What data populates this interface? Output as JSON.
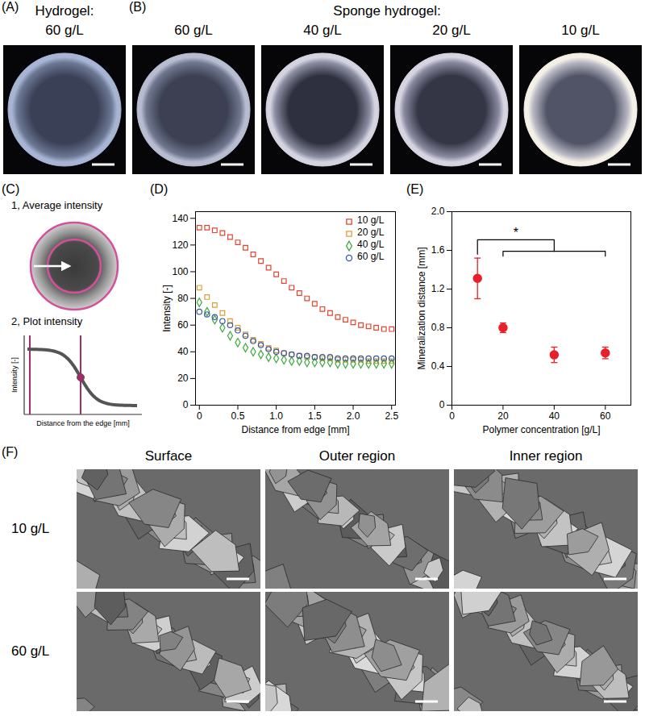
{
  "panels": {
    "A": {
      "label": "(A)",
      "title": "Hydrogel:",
      "images": [
        "60 g/L"
      ]
    },
    "B": {
      "label": "(B)",
      "title": "Sponge hydrogel:",
      "images": [
        "60 g/L",
        "40 g/L",
        "20 g/L",
        "10 g/L"
      ]
    },
    "C": {
      "label": "(C)",
      "steps": [
        "1, Average intensity",
        "2, Plot intensity"
      ],
      "x_label": "Distance from the edge [mm]",
      "y_label": "Intensity [-]"
    },
    "F": {
      "label": "(F)",
      "columns": [
        "Surface",
        "Outer region",
        "Inner region"
      ],
      "rows": [
        "10 g/L",
        "60 g/L"
      ]
    }
  },
  "chart_data": [
    {
      "panel": "(D)",
      "type": "scatter",
      "x_label": "Distance from edge [mm]",
      "y_label": "Intensity [-]",
      "x": [
        0,
        0.1,
        0.2,
        0.3,
        0.4,
        0.5,
        0.6,
        0.7,
        0.8,
        0.9,
        1,
        1.1,
        1.2,
        1.3,
        1.4,
        1.5,
        1.6,
        1.7,
        1.8,
        1.9,
        2,
        2.1,
        2.2,
        2.3,
        2.4,
        2.5
      ],
      "series": [
        {
          "name": "10 g/L",
          "color": "#e8432e",
          "marker": "square",
          "values": [
            133,
            133,
            131,
            129,
            126,
            122,
            118,
            113,
            108,
            103,
            98,
            93,
            88,
            84,
            80,
            76,
            72,
            69,
            66,
            64,
            62,
            60,
            59,
            58,
            57,
            57
          ]
        },
        {
          "name": "20 g/L",
          "color": "#d9a03a",
          "marker": "square",
          "values": [
            88,
            81,
            75,
            69,
            63,
            58,
            53,
            49,
            46,
            43,
            41,
            39,
            38,
            37,
            36,
            36,
            35,
            35,
            34,
            34,
            34,
            34,
            33,
            33,
            33,
            33
          ]
        },
        {
          "name": "40 g/L",
          "color": "#3daa3d",
          "marker": "diamond",
          "values": [
            77,
            70,
            64,
            58,
            52,
            47,
            43,
            40,
            38,
            36,
            35,
            34,
            33,
            33,
            32,
            32,
            32,
            32,
            31,
            31,
            31,
            31,
            31,
            31,
            31,
            31
          ]
        },
        {
          "name": "60 g/L",
          "color": "#3557a6",
          "marker": "circle",
          "values": [
            70,
            68,
            66,
            63,
            60,
            56,
            52,
            48,
            45,
            42,
            40,
            39,
            38,
            37,
            37,
            36,
            36,
            36,
            35,
            35,
            35,
            35,
            35,
            35,
            35,
            35
          ]
        }
      ],
      "xlim": [
        -0.05,
        2.55
      ],
      "xticks": [
        0,
        0.5,
        {
          "value": 1,
          "label": "1.0"
        },
        1.5,
        {
          "value": 2,
          "label": "2.0"
        },
        2.5
      ],
      "ylim": [
        0,
        145
      ],
      "yticks": [
        0,
        20,
        40,
        60,
        80,
        100,
        120,
        140
      ],
      "legend": "top-right"
    },
    {
      "panel": "(E)",
      "type": "scatter",
      "x_label": "Polymer concentration [g/L]",
      "y_label": "Mineralization distance [mm]",
      "x": [
        10,
        20,
        40,
        60
      ],
      "values": [
        1.31,
        0.8,
        0.52,
        0.54
      ],
      "errors": [
        0.21,
        0.05,
        0.08,
        0.06
      ],
      "color": "#e8202a",
      "marker": "circle",
      "xlim": [
        0,
        70
      ],
      "xticks": [
        0,
        20,
        40,
        60
      ],
      "ylim": [
        0,
        2
      ],
      "yticks": [
        0,
        0.4,
        0.8,
        1.2,
        1.6,
        {
          "value": 2,
          "label": "2.0"
        }
      ],
      "annotations": [
        {
          "text": "*"
        }
      ]
    }
  ]
}
